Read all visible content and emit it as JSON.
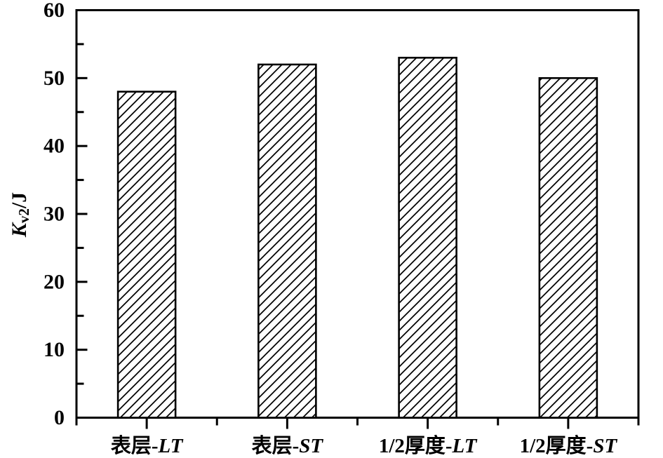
{
  "figure": {
    "background": "#ffffff"
  },
  "chart_data": {
    "type": "bar",
    "title": "",
    "categories": [
      "表层-LT",
      "表层-ST",
      "1/2厚度-LT",
      "1/2厚度-ST"
    ],
    "category_parts": [
      {
        "prefix": "表层-",
        "suffix": "LT"
      },
      {
        "prefix": "表层-",
        "suffix": "ST"
      },
      {
        "prefix": "1/2厚度-",
        "suffix": "LT"
      },
      {
        "prefix": "1/2厚度-",
        "suffix": "ST"
      }
    ],
    "values": [
      48,
      52,
      53,
      50
    ],
    "xlabel": "",
    "ylabel": "Kv2/J",
    "ylabel_parts": {
      "symbol": "K",
      "subscript": "v2",
      "unit": "/J"
    },
    "ylim": [
      0,
      60
    ],
    "ytick_major": [
      0,
      10,
      20,
      30,
      40,
      50,
      60
    ],
    "ytick_minor": [
      5,
      15,
      25,
      35,
      45,
      55
    ],
    "grid": false,
    "legend": null,
    "bar_hatch": "diagonal-forward-slash",
    "colors": {
      "axis": "#000000",
      "text": "#000000",
      "bar_fill": "#ffffff",
      "bar_border": "#000000",
      "hatch_line": "#000000"
    }
  }
}
